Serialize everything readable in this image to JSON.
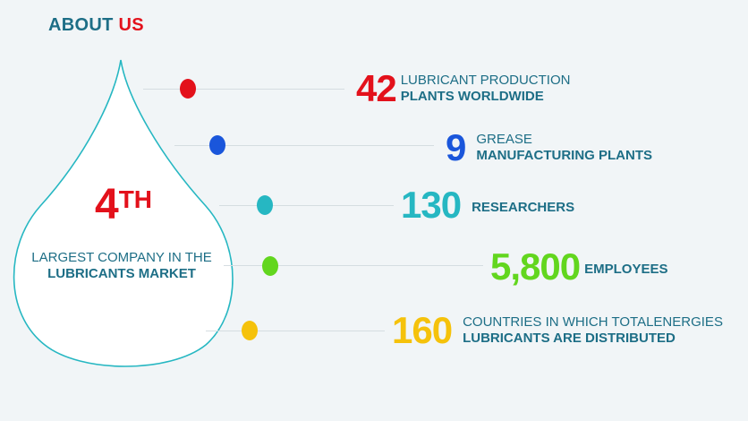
{
  "heading": {
    "part1": "ABOUT ",
    "part2": "US"
  },
  "drop": {
    "rank_number": "4",
    "rank_suffix": "TH",
    "line1": "LARGEST COMPANY IN THE",
    "line2": "LUBRICANTS MARKET"
  },
  "colors": {
    "teal_text": "#1d6e86",
    "red": "#e3111b",
    "blue": "#1a56db",
    "cyan": "#26b7c2",
    "green": "#62d61e",
    "yellow": "#f5c20b"
  },
  "stats": [
    {
      "value": "42",
      "line1": "LUBRICANT PRODUCTION",
      "line2": "PLANTS WORLDWIDE",
      "color": "#e3111b"
    },
    {
      "value": "9",
      "line1": "GREASE",
      "line2": "MANUFACTURING PLANTS",
      "color": "#1a56db"
    },
    {
      "value": "130",
      "line1": "",
      "line2": "RESEARCHERS",
      "color": "#26b7c2"
    },
    {
      "value": "5,800",
      "line1": "",
      "line2": "EMPLOYEES",
      "color": "#62d61e"
    },
    {
      "value": "160",
      "line1": "COUNTRIES IN WHICH TOTALENERGIES",
      "line2": "LUBRICANTS ARE DISTRIBUTED",
      "color": "#f5c20b"
    }
  ]
}
